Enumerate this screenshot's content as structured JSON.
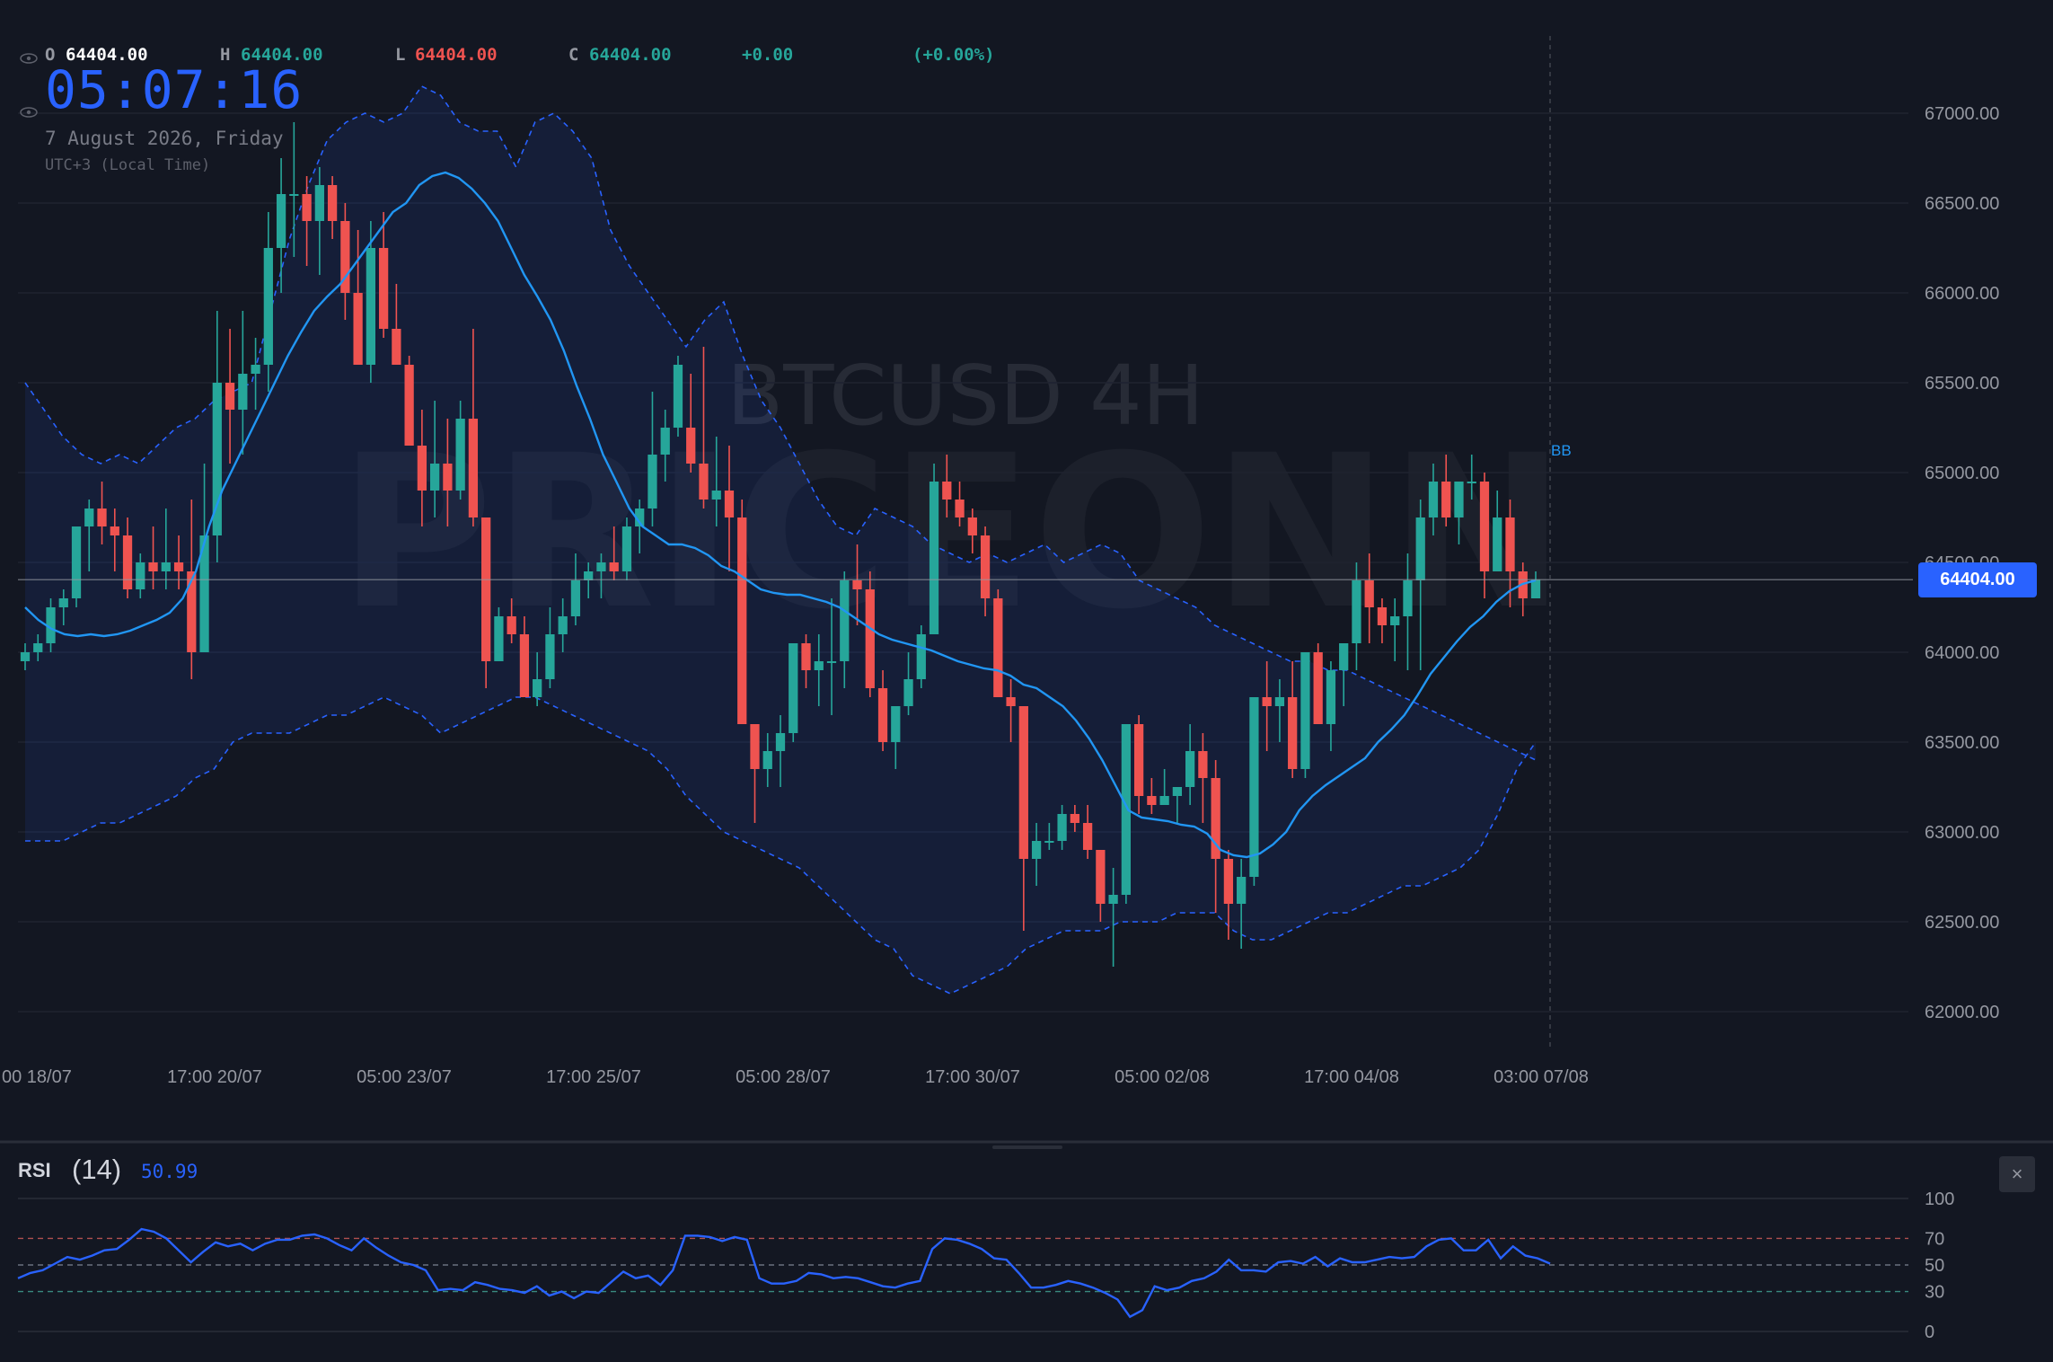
{
  "legend": {
    "o_label": "O",
    "o_value": "64404.00",
    "h_label": "H",
    "h_value": "64404.00",
    "l_label": "L",
    "l_value": "64404.00",
    "c_label": "C",
    "c_value": "64404.00",
    "change": "+0.00",
    "change_pct": "(+0.00%)"
  },
  "clock": {
    "time": "05:07:16",
    "date": "7 August 2026, Friday",
    "timezone": "UTC+3 (Local Time)"
  },
  "watermark": {
    "line1": "BTCUSD 4H",
    "line2": "PRICEONN"
  },
  "indicator_tag": "BB",
  "current_price_label": "64404.00",
  "rsi": {
    "title": "RSI",
    "length": "(14)",
    "value": "50.99",
    "close_icon": "close-icon",
    "close_glyph": "×"
  },
  "colors": {
    "background": "#131722",
    "up": "#26a69a",
    "down": "#ef5350",
    "bb_basis": "#2196f3",
    "bb_bands": "#2962ff",
    "rsi_line": "#2962ff",
    "price_label_bg": "#2962ff"
  },
  "chart_data": [
    {
      "type": "candlestick",
      "title": "",
      "symbol": "BTCUSD",
      "timeframe": "4H",
      "x_tick_labels": [
        "00 18/07",
        "17:00 20/07",
        "05:00 23/07",
        "17:00 25/07",
        "05:00 28/07",
        "17:00 30/07",
        "05:00 02/08",
        "17:00 04/08",
        "03:00 07/08"
      ],
      "y_ticks": [
        62000,
        62500,
        63000,
        63500,
        64000,
        64500,
        65000,
        65500,
        66000,
        66500,
        67000
      ],
      "y_tick_labels": [
        "62000.00",
        "62500.00",
        "63000.00",
        "63500.00",
        "64000.00",
        "64500.00",
        "65000.00",
        "65500.00",
        "66000.00",
        "66500.00",
        "67000.00"
      ],
      "ylim": [
        61800,
        67400
      ],
      "grid": true,
      "current_price": 64404.0,
      "candles_ohlc": [
        [
          63950,
          64050,
          63900,
          64000
        ],
        [
          64000,
          64100,
          63950,
          64050
        ],
        [
          64050,
          64300,
          64000,
          64250
        ],
        [
          64250,
          64350,
          64150,
          64300
        ],
        [
          64300,
          64600,
          64250,
          64700
        ],
        [
          64700,
          64850,
          64450,
          64800
        ],
        [
          64800,
          64950,
          64600,
          64700
        ],
        [
          64700,
          64800,
          64450,
          64650
        ],
        [
          64650,
          64750,
          64300,
          64350
        ],
        [
          64350,
          64550,
          64300,
          64500
        ],
        [
          64500,
          64700,
          64350,
          64450
        ],
        [
          64450,
          64800,
          64350,
          64500
        ],
        [
          64500,
          64650,
          64350,
          64450
        ],
        [
          64450,
          64850,
          63850,
          64000
        ],
        [
          64000,
          65050,
          64000,
          64650
        ],
        [
          64650,
          65900,
          64500,
          65500
        ],
        [
          65500,
          65800,
          65050,
          65350
        ],
        [
          65350,
          65900,
          65100,
          65550
        ],
        [
          65550,
          65750,
          65350,
          65600
        ],
        [
          65600,
          66450,
          65450,
          66250
        ],
        [
          66250,
          66750,
          66000,
          66550
        ],
        [
          66550,
          66950,
          66200,
          66550
        ],
        [
          66550,
          66650,
          66150,
          66400
        ],
        [
          66400,
          66700,
          66100,
          66600
        ],
        [
          66600,
          66650,
          66300,
          66400
        ],
        [
          66400,
          66500,
          65850,
          66000
        ],
        [
          66000,
          66350,
          65600,
          65600
        ],
        [
          65600,
          66400,
          65500,
          66250
        ],
        [
          66250,
          66450,
          65750,
          65800
        ],
        [
          65800,
          66050,
          65600,
          65600
        ],
        [
          65600,
          65650,
          65200,
          65150
        ],
        [
          65150,
          65350,
          64700,
          64900
        ],
        [
          64900,
          65400,
          64750,
          65050
        ],
        [
          65050,
          65300,
          64700,
          64900
        ],
        [
          64900,
          65400,
          64850,
          65300
        ],
        [
          65300,
          65800,
          64700,
          64750
        ],
        [
          64750,
          64750,
          63800,
          63950
        ],
        [
          63950,
          64250,
          63950,
          64200
        ],
        [
          64200,
          64300,
          64050,
          64100
        ],
        [
          64100,
          64200,
          63850,
          63750
        ],
        [
          63750,
          64000,
          63700,
          63850
        ],
        [
          63850,
          64250,
          63800,
          64100
        ],
        [
          64100,
          64300,
          64000,
          64200
        ],
        [
          64200,
          64550,
          64150,
          64400
        ],
        [
          64400,
          64500,
          64300,
          64450
        ],
        [
          64450,
          64550,
          64300,
          64500
        ],
        [
          64500,
          64700,
          64400,
          64450
        ],
        [
          64450,
          64750,
          64400,
          64700
        ],
        [
          64700,
          64850,
          64550,
          64800
        ],
        [
          64800,
          65450,
          64700,
          65100
        ],
        [
          65100,
          65350,
          64950,
          65250
        ],
        [
          65250,
          65650,
          65200,
          65600
        ],
        [
          65250,
          65550,
          65000,
          65050
        ],
        [
          65050,
          65700,
          64800,
          64850
        ],
        [
          64850,
          65200,
          64700,
          64900
        ],
        [
          64900,
          65150,
          64450,
          64750
        ],
        [
          64750,
          64850,
          63600,
          63600
        ],
        [
          63600,
          63550,
          63050,
          63350
        ],
        [
          63350,
          63550,
          63250,
          63450
        ],
        [
          63450,
          63650,
          63250,
          63550
        ],
        [
          63550,
          64050,
          63500,
          64050
        ],
        [
          64050,
          64100,
          63800,
          63900
        ],
        [
          63900,
          64100,
          63700,
          63950
        ],
        [
          63950,
          64300,
          63650,
          63950
        ],
        [
          63950,
          64450,
          63800,
          64400
        ],
        [
          64400,
          64600,
          64150,
          64350
        ],
        [
          64350,
          64450,
          63750,
          63800
        ],
        [
          63800,
          63900,
          63450,
          63500
        ],
        [
          63500,
          63700,
          63350,
          63700
        ],
        [
          63700,
          64000,
          63650,
          63850
        ],
        [
          63850,
          64150,
          63800,
          64100
        ],
        [
          64100,
          65050,
          64100,
          64950
        ],
        [
          64950,
          65100,
          64750,
          64850
        ],
        [
          64850,
          64950,
          64700,
          64750
        ],
        [
          64750,
          64800,
          64550,
          64650
        ],
        [
          64650,
          64700,
          64200,
          64300
        ],
        [
          64300,
          64350,
          63900,
          63750
        ],
        [
          63750,
          63850,
          63500,
          63700
        ],
        [
          63700,
          63650,
          62450,
          62850
        ],
        [
          62850,
          63050,
          62700,
          62950
        ],
        [
          62950,
          63050,
          62900,
          62950
        ],
        [
          62950,
          63150,
          62900,
          63100
        ],
        [
          63100,
          63150,
          63000,
          63050
        ],
        [
          63050,
          63150,
          62850,
          62900
        ],
        [
          62900,
          62900,
          62500,
          62600
        ],
        [
          62600,
          62800,
          62250,
          62650
        ],
        [
          62650,
          63100,
          62600,
          63600
        ],
        [
          63600,
          63650,
          63100,
          63200
        ],
        [
          63200,
          63300,
          63100,
          63150
        ],
        [
          63150,
          63350,
          63150,
          63200
        ],
        [
          63200,
          63250,
          63050,
          63250
        ],
        [
          63250,
          63600,
          63150,
          63450
        ],
        [
          63450,
          63550,
          63050,
          63300
        ],
        [
          63300,
          63400,
          62550,
          62850
        ],
        [
          62850,
          62900,
          62400,
          62600
        ],
        [
          62600,
          62850,
          62350,
          62750
        ],
        [
          62750,
          63750,
          62700,
          63750
        ],
        [
          63750,
          63950,
          63450,
          63700
        ],
        [
          63700,
          63850,
          63500,
          63750
        ],
        [
          63750,
          63950,
          63300,
          63350
        ],
        [
          63350,
          64000,
          63300,
          64000
        ],
        [
          64000,
          64050,
          63650,
          63600
        ],
        [
          63600,
          63950,
          63450,
          63900
        ],
        [
          63900,
          64000,
          63700,
          64050
        ],
        [
          64050,
          64500,
          63900,
          64400
        ],
        [
          64400,
          64550,
          64050,
          64250
        ],
        [
          64250,
          64300,
          64050,
          64150
        ],
        [
          64150,
          64300,
          63950,
          64200
        ],
        [
          64200,
          64550,
          63900,
          64400
        ],
        [
          64400,
          64850,
          63900,
          64750
        ],
        [
          64750,
          65050,
          64650,
          64950
        ],
        [
          64950,
          65100,
          64700,
          64750
        ],
        [
          64750,
          64950,
          64600,
          64950
        ],
        [
          64950,
          65100,
          64850,
          64950
        ],
        [
          64950,
          65000,
          64300,
          64450
        ],
        [
          64450,
          64900,
          64500,
          64750
        ],
        [
          64750,
          64850,
          64250,
          64450
        ],
        [
          64450,
          64500,
          64200,
          64300
        ],
        [
          64300,
          64450,
          64300,
          64404
        ]
      ],
      "bb_basis": [
        64250,
        64180,
        64130,
        64100,
        64090,
        64100,
        64090,
        64100,
        64120,
        64150,
        64180,
        64220,
        64300,
        64450,
        64700,
        64900,
        65050,
        65200,
        65350,
        65500,
        65650,
        65780,
        65900,
        65980,
        66050,
        66150,
        66250,
        66350,
        66450,
        66500,
        66600,
        66650,
        66670,
        66640,
        66580,
        66500,
        66400,
        66250,
        66100,
        65980,
        65850,
        65680,
        65480,
        65300,
        65100,
        64950,
        64800,
        64700,
        64650,
        64600,
        64600,
        64580,
        64540,
        64480,
        64450,
        64400,
        64350,
        64330,
        64320,
        64320,
        64300,
        64280,
        64250,
        64200,
        64150,
        64100,
        64070,
        64050,
        64030,
        64010,
        63980,
        63950,
        63930,
        63910,
        63900,
        63870,
        63820,
        63800,
        63750,
        63700,
        63620,
        63520,
        63400,
        63260,
        63120,
        63080,
        63070,
        63060,
        63040,
        63030,
        62990,
        62900,
        62870,
        62860,
        62880,
        62930,
        63000,
        63120,
        63200,
        63260,
        63310,
        63360,
        63410,
        63500,
        63570,
        63650,
        63760,
        63880,
        63970,
        64060,
        64140,
        64200,
        64280,
        64340,
        64380,
        64400
      ],
      "bb_upper": [
        65500,
        65350,
        65200,
        65100,
        65050,
        65100,
        65050,
        65150,
        65250,
        65300,
        65400,
        65450,
        65500,
        65900,
        66300,
        66600,
        66850,
        66950,
        67000,
        66950,
        67000,
        67150,
        67100,
        66950,
        66900,
        66900,
        66700,
        66950,
        67000,
        66900,
        66750,
        66350,
        66150,
        66000,
        65850,
        65700,
        65850,
        65950,
        65650,
        65400,
        65250,
        65050,
        64850,
        64700,
        64650,
        64800,
        64750,
        64700,
        64600,
        64550,
        64500,
        64550,
        64500,
        64550,
        64600,
        64500,
        64550,
        64600,
        64550,
        64400,
        64350,
        64300,
        64250,
        64150,
        64100,
        64050,
        64000,
        63950,
        63950,
        63900,
        63900,
        63850,
        63800,
        63750,
        63700,
        63650,
        63600,
        63550,
        63500,
        63450,
        63400
      ],
      "bb_lower": [
        62950,
        62950,
        62950,
        63000,
        63050,
        63050,
        63100,
        63150,
        63200,
        63300,
        63350,
        63500,
        63550,
        63550,
        63550,
        63600,
        63650,
        63650,
        63700,
        63750,
        63700,
        63650,
        63550,
        63600,
        63650,
        63700,
        63750,
        63750,
        63700,
        63650,
        63600,
        63550,
        63500,
        63450,
        63350,
        63200,
        63100,
        63000,
        62950,
        62900,
        62850,
        62800,
        62700,
        62600,
        62500,
        62400,
        62350,
        62200,
        62150,
        62100,
        62150,
        62200,
        62250,
        62350,
        62400,
        62450,
        62450,
        62450,
        62500,
        62500,
        62500,
        62550,
        62550,
        62550,
        62450,
        62400,
        62400,
        62450,
        62500,
        62550,
        62550,
        62600,
        62650,
        62700,
        62700,
        62750,
        62800,
        62900,
        63100,
        63350,
        63500
      ]
    },
    {
      "type": "line",
      "title": "RSI",
      "name": "RSI (14)",
      "y_tick_labels": [
        "100",
        "70",
        "50",
        "30",
        "0"
      ],
      "ylim": [
        0,
        100
      ],
      "bands": [
        70,
        50,
        30
      ],
      "values": [
        40,
        44,
        46,
        51,
        56,
        54,
        57,
        61,
        62,
        69,
        77,
        75,
        70,
        61,
        52,
        60,
        67,
        64,
        66,
        61,
        66,
        69,
        69,
        72,
        73,
        70,
        65,
        61,
        70,
        63,
        57,
        52,
        50,
        46,
        31,
        32,
        31,
        37,
        35,
        32,
        31,
        29,
        34,
        27,
        30,
        25,
        30,
        29,
        37,
        45,
        40,
        42,
        35,
        46,
        72,
        72,
        71,
        68,
        71,
        69,
        40,
        36,
        36,
        38,
        44,
        43,
        40,
        41,
        40,
        37,
        34,
        33,
        36,
        38,
        62,
        70,
        69,
        66,
        62,
        55,
        54,
        44,
        33,
        33,
        35,
        38,
        36,
        33,
        29,
        24,
        11,
        16,
        34,
        31,
        33,
        38,
        40,
        45,
        54,
        46,
        46,
        45,
        52,
        53,
        51,
        56,
        49,
        55,
        52,
        52,
        54,
        56,
        55,
        56,
        64,
        69,
        70,
        61,
        61,
        69,
        55,
        64,
        57,
        55,
        51
      ]
    }
  ]
}
